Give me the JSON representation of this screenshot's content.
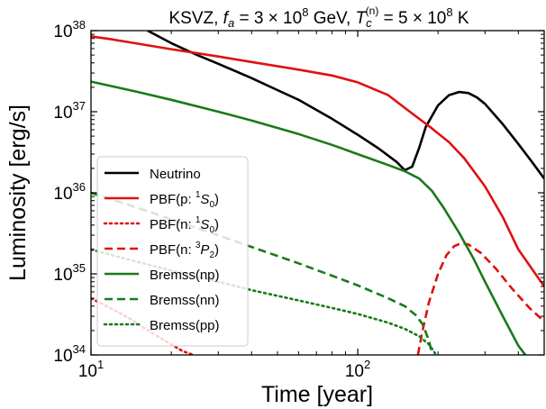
{
  "chart_data": {
    "type": "line",
    "title": "KSVZ, f_a = 3 × 10^8 GeV, T_c^(n) = 5 × 10^8 K",
    "title_parts": {
      "prefix": "KSVZ, ",
      "fa_sym": "f",
      "fa_sub": "a",
      "fa_eq": " = 3 × 10",
      "fa_exp": "8",
      "fa_unit": " GeV, ",
      "tc_sym": "T",
      "tc_sub": "c",
      "tc_sup": "(n)",
      "tc_eq": " = 5 × 10",
      "tc_exp": "8",
      "tc_unit": " K"
    },
    "xlabel": "Time [year]",
    "ylabel": "Luminosity [erg/s]",
    "xscale": "log",
    "yscale": "log",
    "xlim": [
      10,
      500
    ],
    "ylim": [
      1e+34,
      1e+38
    ],
    "x_ticks": [
      {
        "value": 10,
        "base": "10",
        "exp": "1"
      },
      {
        "value": 100,
        "base": "10",
        "exp": "2"
      }
    ],
    "y_ticks": [
      {
        "value": 1e+34,
        "base": "10",
        "exp": "34"
      },
      {
        "value": 1e+35,
        "base": "10",
        "exp": "35"
      },
      {
        "value": 1e+36,
        "base": "10",
        "exp": "36"
      },
      {
        "value": 1e+37,
        "base": "10",
        "exp": "37"
      },
      {
        "value": 1e+38,
        "base": "10",
        "exp": "38"
      }
    ],
    "legend_position": "lower-left",
    "grid": false,
    "series": [
      {
        "name": "Neutrino",
        "legend": {
          "text": "Neutrino"
        },
        "color": "#000000",
        "style": "solid",
        "x": [
          16.3,
          20,
          25,
          30,
          40,
          50,
          60,
          80,
          100,
          120,
          140,
          150,
          160,
          170,
          180,
          200,
          220,
          240,
          260,
          280,
          300,
          350,
          400,
          450,
          500
        ],
        "y": [
          1e+38,
          7e+37,
          5e+37,
          3.9e+37,
          2.6e+37,
          1.85e+37,
          1.4e+37,
          8.2e+36,
          5.2e+36,
          3.5e+36,
          2.4e+36,
          1.9e+36,
          2.1e+36,
          3.6e+36,
          6.5e+36,
          1.2e+37,
          1.6e+37,
          1.75e+37,
          1.7e+37,
          1.5e+37,
          1.25e+37,
          7e+36,
          4e+36,
          2.4e+36,
          1.5e+36
        ]
      },
      {
        "name": "PBF(p: 1S0)",
        "legend": {
          "prefix": "PBF(p: ",
          "sup": "1",
          "main": "S",
          "sub": "0",
          "suffix": ")"
        },
        "color": "#e01010",
        "style": "solid",
        "x": [
          10,
          12,
          15,
          20,
          30,
          40,
          60,
          80,
          100,
          130,
          160,
          190,
          220,
          250,
          300,
          350,
          400,
          500
        ],
        "y": [
          8.5e+37,
          7.8e+37,
          6.9e+37,
          5.9e+37,
          4.8e+37,
          4.1e+37,
          3.3e+37,
          2.8e+37,
          2.3e+37,
          1.6e+37,
          9.5e+36,
          6.2e+36,
          4.2e+36,
          2.7e+36,
          1.2e+36,
          5e+35,
          2e+35,
          7e+34
        ]
      },
      {
        "name": "PBF(n: 1S0)",
        "legend": {
          "prefix": "PBF(n: ",
          "sup": "1",
          "main": "S",
          "sub": "0",
          "suffix": ")"
        },
        "color": "#e01010",
        "style": "dotted",
        "x": [
          10,
          12,
          14,
          16,
          18,
          20,
          22,
          24.2
        ],
        "y": [
          5e+34,
          3.7e+34,
          2.8e+34,
          2.1e+34,
          1.65e+34,
          1.35e+34,
          1.12e+34,
          1e+34
        ]
      },
      {
        "name": "PBF(n: 3P2)",
        "legend": {
          "prefix": "PBF(n: ",
          "sup": "3",
          "main": "P",
          "sub": "2",
          "suffix": ")"
        },
        "color": "#e01010",
        "style": "dashed",
        "x": [
          168,
          175,
          185,
          200,
          215,
          230,
          245,
          260,
          290,
          330,
          380,
          440,
          500
        ],
        "y": [
          1e+34,
          2e+34,
          4.5e+34,
          1e+35,
          1.7e+35,
          2.2e+35,
          2.4e+35,
          2.3e+35,
          1.8e+35,
          1.15e+35,
          6.5e+34,
          3.8e+34,
          2.6e+34
        ]
      },
      {
        "name": "Bremss(np)",
        "legend": {
          "text": "Bremss(np)"
        },
        "color": "#1a7a1a",
        "style": "solid",
        "x": [
          10,
          15,
          20,
          30,
          40,
          60,
          80,
          100,
          130,
          150,
          170,
          190,
          210,
          240,
          270,
          300,
          350,
          400,
          425
        ],
        "y": [
          2.35e+37,
          1.75e+37,
          1.4e+37,
          1e+37,
          7.8e+36,
          5.3e+36,
          3.9e+36,
          3e+36,
          2.2e+36,
          1.85e+36,
          1.5e+36,
          1.05e+36,
          6.5e+35,
          3.2e+35,
          1.6e+35,
          8e+34,
          3e+34,
          1.3e+34,
          1e+34
        ]
      },
      {
        "name": "Bremss(nn)",
        "legend": {
          "text": "Bremss(nn)"
        },
        "color": "#1a7a1a",
        "style": "dashed",
        "x": [
          10,
          15,
          20,
          30,
          40,
          60,
          80,
          100,
          130,
          150,
          165,
          175,
          185,
          190
        ],
        "y": [
          1e+36,
          6.5e+35,
          4.7e+35,
          3e+35,
          2.15e+35,
          1.35e+35,
          9.5e+34,
          7.2e+34,
          5e+34,
          4e+34,
          3.1e+34,
          2.4e+34,
          1.5e+34,
          1e+34
        ]
      },
      {
        "name": "Bremss(pp)",
        "legend": {
          "text": "Bremss(pp)"
        },
        "color": "#1a7a1a",
        "style": "dotted",
        "x": [
          10,
          15,
          20,
          30,
          40,
          60,
          80,
          100,
          130,
          150,
          170,
          185,
          195
        ],
        "y": [
          2e+35,
          1.4e+35,
          1.1e+35,
          8e+34,
          6.3e+34,
          4.7e+34,
          3.8e+34,
          3.2e+34,
          2.5e+34,
          2.1e+34,
          1.7e+34,
          1.35e+34,
          1.05e+34
        ]
      }
    ]
  }
}
